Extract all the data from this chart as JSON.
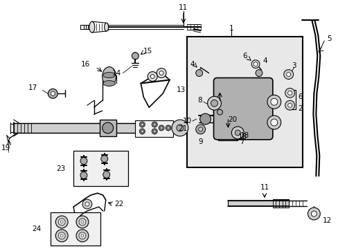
{
  "bg_color": "#ffffff",
  "fig_width": 4.89,
  "fig_height": 3.6,
  "dpi": 100,
  "lc": "#000000",
  "gray_box": "#e8e8e8",
  "gray_part": "#888888",
  "gray_light": "#cccccc",
  "gray_mid": "#aaaaaa"
}
